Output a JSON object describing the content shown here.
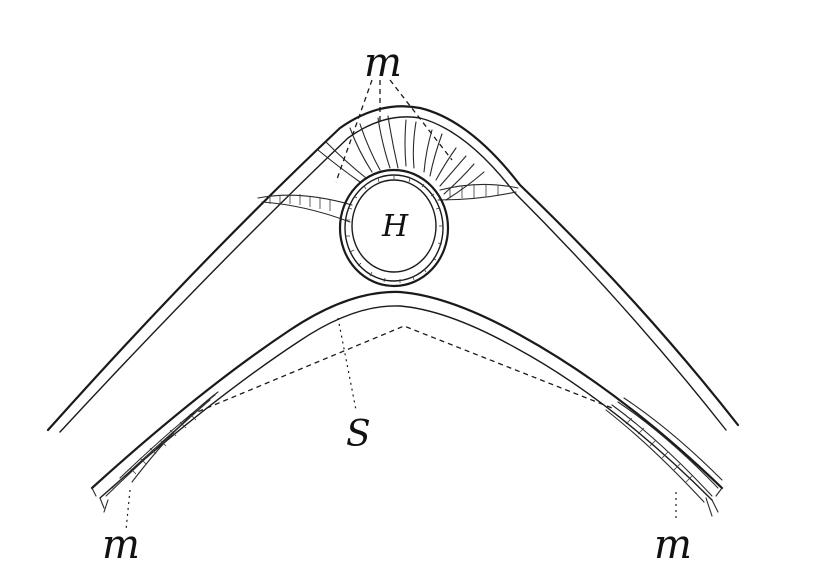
{
  "labels": {
    "muscle_top": "m",
    "heart": "H",
    "septum": "S",
    "muscle_left": "m",
    "muscle_right": "m"
  }
}
